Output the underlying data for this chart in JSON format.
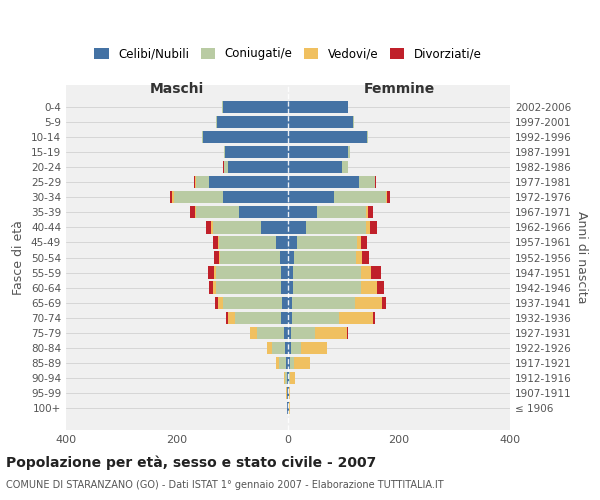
{
  "age_groups": [
    "100+",
    "95-99",
    "90-94",
    "85-89",
    "80-84",
    "75-79",
    "70-74",
    "65-69",
    "60-64",
    "55-59",
    "50-54",
    "45-49",
    "40-44",
    "35-39",
    "30-34",
    "25-29",
    "20-24",
    "15-19",
    "10-14",
    "5-9",
    "0-4"
  ],
  "birth_years": [
    "≤ 1906",
    "1907-1911",
    "1912-1916",
    "1917-1921",
    "1922-1926",
    "1927-1931",
    "1932-1936",
    "1937-1941",
    "1942-1946",
    "1947-1951",
    "1952-1956",
    "1957-1961",
    "1962-1966",
    "1967-1971",
    "1972-1976",
    "1977-1981",
    "1982-1986",
    "1987-1991",
    "1992-1996",
    "1997-2001",
    "2002-2006"
  ],
  "maschi_celibi": [
    1,
    1,
    2,
    3,
    5,
    8,
    12,
    10,
    12,
    12,
    14,
    22,
    48,
    88,
    118,
    143,
    108,
    113,
    153,
    128,
    118
  ],
  "maschi_coniugati": [
    1,
    1,
    3,
    13,
    23,
    48,
    83,
    108,
    118,
    118,
    108,
    103,
    88,
    78,
    88,
    23,
    8,
    3,
    2,
    2,
    1
  ],
  "maschi_vedovi": [
    0,
    1,
    2,
    5,
    10,
    12,
    14,
    8,
    5,
    3,
    2,
    2,
    2,
    2,
    3,
    1,
    0,
    0,
    0,
    0,
    0
  ],
  "maschi_divorziati": [
    0,
    0,
    0,
    0,
    0,
    0,
    2,
    5,
    8,
    12,
    10,
    8,
    10,
    8,
    3,
    2,
    1,
    0,
    0,
    0,
    0
  ],
  "femmine_nubili": [
    1,
    1,
    2,
    3,
    5,
    6,
    8,
    8,
    9,
    9,
    10,
    16,
    33,
    53,
    83,
    128,
    98,
    108,
    143,
    118,
    108
  ],
  "femmine_coniugate": [
    1,
    1,
    2,
    8,
    18,
    43,
    83,
    113,
    123,
    123,
    113,
    108,
    108,
    88,
    93,
    28,
    10,
    3,
    2,
    1,
    1
  ],
  "femmine_vedove": [
    1,
    2,
    8,
    28,
    48,
    58,
    63,
    48,
    28,
    18,
    10,
    8,
    6,
    3,
    2,
    1,
    0,
    0,
    0,
    0,
    0
  ],
  "femmine_divorziate": [
    0,
    0,
    0,
    0,
    0,
    2,
    3,
    8,
    13,
    18,
    13,
    10,
    13,
    10,
    6,
    2,
    1,
    0,
    0,
    0,
    0
  ],
  "colors": {
    "celibi_nubili": "#4472a4",
    "coniugati": "#b9cba3",
    "vedovi": "#f0c060",
    "divorziati": "#c0202a"
  },
  "xlim": 400,
  "title": "Popolazione per età, sesso e stato civile - 2007",
  "subtitle": "COMUNE DI STARANZANO (GO) - Dati ISTAT 1° gennaio 2007 - Elaborazione TUTTITALIA.IT",
  "ylabel_left": "Fasce di età",
  "ylabel_right": "Anni di nascita",
  "xlabel_maschi": "Maschi",
  "xlabel_femmine": "Femmine"
}
